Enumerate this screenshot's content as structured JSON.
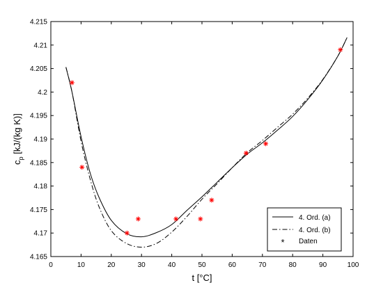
{
  "chart_data": {
    "type": "line",
    "title": "",
    "xlabel": "t [°C]",
    "ylabel_main": "c",
    "ylabel_sub": "p",
    "ylabel_rest": " [kJ/(kg K)]",
    "xlim": [
      0,
      100
    ],
    "ylim": [
      4.165,
      4.215
    ],
    "xticks": [
      "0",
      "10",
      "20",
      "30",
      "40",
      "50",
      "60",
      "70",
      "80",
      "90",
      "100"
    ],
    "yticks": [
      "4.165",
      "4.17",
      "4.175",
      "4.18",
      "4.185",
      "4.19",
      "4.195",
      "4.2",
      "4.205",
      "4.21",
      "4.215"
    ],
    "grid": false,
    "legend_position": "bottom-right",
    "series": [
      {
        "name": "4. Ord. (a)",
        "style": "solid",
        "color": "#000000",
        "x": [
          5,
          7,
          10,
          13,
          16,
          20,
          25,
          30,
          35,
          40,
          45,
          50,
          55,
          60,
          65,
          70,
          75,
          80,
          85,
          90,
          95,
          98
        ],
        "y": [
          4.2053,
          4.2,
          4.1905,
          4.1828,
          4.1775,
          4.1727,
          4.1699,
          4.1692,
          4.1701,
          4.1718,
          4.1748,
          4.1777,
          4.1808,
          4.1839,
          4.1868,
          4.1892,
          4.1919,
          4.1948,
          4.1984,
          4.2026,
          4.2077,
          4.2116
        ]
      },
      {
        "name": "4. Ord. (b)",
        "style": "dashdot",
        "color": "#000000",
        "x": [
          5,
          7,
          10,
          13,
          16,
          20,
          25,
          30,
          35,
          40,
          45,
          50,
          55,
          60,
          65,
          70,
          75,
          80,
          85,
          90,
          95,
          98
        ],
        "y": [
          4.2053,
          4.2,
          4.1895,
          4.1815,
          4.1755,
          4.1705,
          4.1678,
          4.167,
          4.1678,
          4.1702,
          4.1735,
          4.1772,
          4.1805,
          4.1839,
          4.1871,
          4.1897,
          4.1925,
          4.1953,
          4.1987,
          4.2027,
          4.2077,
          4.2116
        ]
      },
      {
        "name": "Daten",
        "style": "markers",
        "color": "#ff0000",
        "x": [
          7,
          10.3,
          25.2,
          28.9,
          41.4,
          49.5,
          53.2,
          64.6,
          71.1,
          95.8
        ],
        "y": [
          4.202,
          4.184,
          4.17,
          4.173,
          4.173,
          4.173,
          4.177,
          4.187,
          4.189,
          4.209
        ]
      }
    ]
  }
}
